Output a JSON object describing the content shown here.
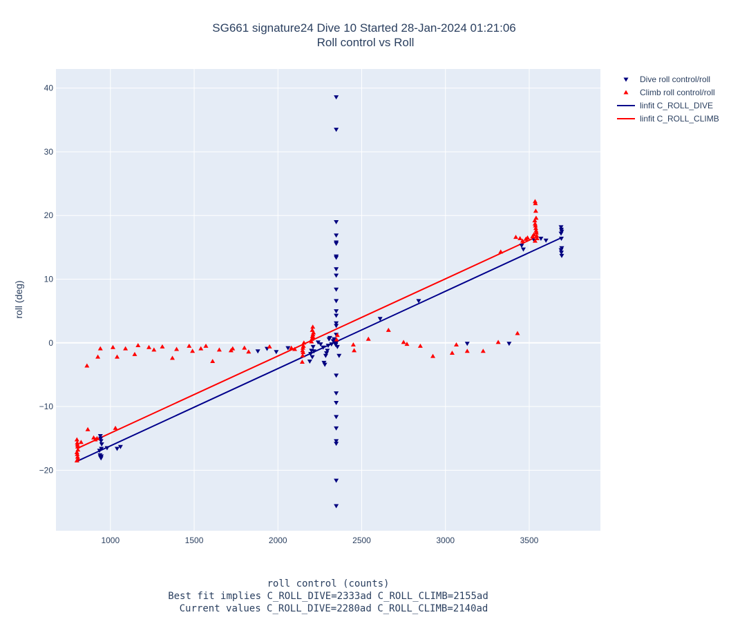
{
  "chart_data": {
    "type": "scatter",
    "title": "SG661 signature24 Dive 10 Started 28-Jan-2024 01:21:06",
    "subtitle": "Roll control vs Roll",
    "xlabel": "roll control (counts)",
    "ylabel": "roll (deg)",
    "xlabel_notes": [
      "Best fit implies C_ROLL_DIVE=2333ad C_ROLL_CLIMB=2155ad",
      "Current values C_ROLL_DIVE=2280ad C_ROLL_CLIMB=2140ad"
    ],
    "xlim": [
      675,
      3925
    ],
    "ylim": [
      -29.5,
      43
    ],
    "x_ticks": [
      1000,
      1500,
      2000,
      2500,
      3000,
      3500
    ],
    "y_ticks": [
      -20,
      -10,
      0,
      10,
      20,
      30,
      40
    ],
    "grid": true,
    "legend_position": "top-right",
    "colors": {
      "plot_bg": "#e5ecf6",
      "grid": "#ffffff",
      "text": "#2a3f5f",
      "dive": "#00007f",
      "climb": "#ff0000",
      "dive_fit": "#00008b",
      "climb_fit": "#ff0000"
    },
    "series": [
      {
        "name": "Dive roll control/roll",
        "kind": "markers",
        "marker": "triangle-down",
        "points": [
          [
            940,
            -14.6
          ],
          [
            942,
            -15.0
          ],
          [
            944,
            -15.4
          ],
          [
            946,
            -16.6
          ],
          [
            938,
            -17.6
          ],
          [
            940,
            -17.9
          ],
          [
            944,
            -18.1
          ],
          [
            946,
            -17.8
          ],
          [
            948,
            -15.9
          ],
          [
            935,
            -16.9
          ],
          [
            980,
            -16.5
          ],
          [
            1040,
            -16.6
          ],
          [
            1060,
            -16.3
          ],
          [
            1880,
            -1.3
          ],
          [
            1935,
            -0.9
          ],
          [
            1990,
            -1.4
          ],
          [
            2060,
            -0.8
          ],
          [
            2190,
            -2.9
          ],
          [
            2195,
            -1.7
          ],
          [
            2200,
            -1.2
          ],
          [
            2205,
            -2.2
          ],
          [
            2210,
            -0.6
          ],
          [
            2215,
            -1.3
          ],
          [
            2240,
            0.1
          ],
          [
            2255,
            -0.2
          ],
          [
            2270,
            -0.7
          ],
          [
            2275,
            -3.1
          ],
          [
            2280,
            -3.4
          ],
          [
            2285,
            -2.0
          ],
          [
            2290,
            -1.6
          ],
          [
            2295,
            -1.2
          ],
          [
            2300,
            -0.4
          ],
          [
            2305,
            0.6
          ],
          [
            2310,
            0.8
          ],
          [
            2320,
            -0.2
          ],
          [
            2330,
            0.3
          ],
          [
            2335,
            0.6
          ],
          [
            2340,
            0.2
          ],
          [
            2345,
            -0.3
          ],
          [
            2350,
            0.1
          ],
          [
            2355,
            -0.6
          ],
          [
            2348,
            38.6
          ],
          [
            2348,
            33.5
          ],
          [
            2348,
            19.0
          ],
          [
            2348,
            16.9
          ],
          [
            2348,
            15.8
          ],
          [
            2348,
            15.6
          ],
          [
            2348,
            13.6
          ],
          [
            2348,
            13.4
          ],
          [
            2348,
            11.6
          ],
          [
            2348,
            10.6
          ],
          [
            2348,
            8.4
          ],
          [
            2348,
            6.6
          ],
          [
            2348,
            5.0
          ],
          [
            2348,
            4.3
          ],
          [
            2348,
            3.1
          ],
          [
            2348,
            2.7
          ],
          [
            2348,
            1.3
          ],
          [
            2348,
            -5.1
          ],
          [
            2348,
            -7.9
          ],
          [
            2348,
            -9.4
          ],
          [
            2348,
            -11.6
          ],
          [
            2348,
            -13.4
          ],
          [
            2348,
            -15.4
          ],
          [
            2348,
            -15.8
          ],
          [
            2348,
            -21.6
          ],
          [
            2348,
            -25.6
          ],
          [
            2365,
            -2.0
          ],
          [
            2610,
            3.8
          ],
          [
            2840,
            6.6
          ],
          [
            3130,
            -0.1
          ],
          [
            3380,
            -0.1
          ],
          [
            3455,
            15.3
          ],
          [
            3465,
            14.7
          ],
          [
            3530,
            16.1
          ],
          [
            3570,
            16.4
          ],
          [
            3600,
            16.1
          ],
          [
            3690,
            18.2
          ],
          [
            3692,
            17.8
          ],
          [
            3694,
            17.5
          ],
          [
            3690,
            17.2
          ],
          [
            3692,
            16.4
          ],
          [
            3694,
            14.9
          ],
          [
            3690,
            14.6
          ],
          [
            3692,
            14.2
          ],
          [
            3694,
            13.7
          ]
        ]
      },
      {
        "name": "Climb roll control/roll",
        "kind": "markers",
        "marker": "triangle-up",
        "points": [
          [
            800,
            -15.2
          ],
          [
            802,
            -15.7
          ],
          [
            804,
            -16.3
          ],
          [
            806,
            -16.8
          ],
          [
            800,
            -17.2
          ],
          [
            802,
            -17.5
          ],
          [
            804,
            -17.9
          ],
          [
            806,
            -18.2
          ],
          [
            800,
            -18.5
          ],
          [
            803,
            -16.0
          ],
          [
            825,
            -15.6
          ],
          [
            860,
            -3.6
          ],
          [
            865,
            -13.6
          ],
          [
            900,
            -14.9
          ],
          [
            910,
            -15.2
          ],
          [
            920,
            -15.0
          ],
          [
            925,
            -2.2
          ],
          [
            940,
            -0.9
          ],
          [
            1015,
            -0.7
          ],
          [
            1030,
            -13.4
          ],
          [
            1040,
            -2.2
          ],
          [
            1090,
            -0.9
          ],
          [
            1145,
            -1.8
          ],
          [
            1165,
            -0.4
          ],
          [
            1230,
            -0.7
          ],
          [
            1260,
            -1.1
          ],
          [
            1310,
            -0.6
          ],
          [
            1370,
            -2.4
          ],
          [
            1395,
            -1.0
          ],
          [
            1470,
            -0.5
          ],
          [
            1490,
            -1.3
          ],
          [
            1540,
            -0.9
          ],
          [
            1570,
            -0.5
          ],
          [
            1610,
            -2.9
          ],
          [
            1650,
            -1.1
          ],
          [
            1720,
            -1.2
          ],
          [
            1730,
            -0.9
          ],
          [
            1800,
            -0.8
          ],
          [
            1825,
            -1.4
          ],
          [
            1950,
            -0.6
          ],
          [
            2080,
            -0.8
          ],
          [
            2100,
            -1.0
          ],
          [
            2145,
            -3.0
          ],
          [
            2148,
            -2.0
          ],
          [
            2150,
            -1.5
          ],
          [
            2152,
            -0.5
          ],
          [
            2155,
            0.0
          ],
          [
            2147,
            -1.2
          ],
          [
            2149,
            -0.8
          ],
          [
            2200,
            0.2
          ],
          [
            2203,
            0.6
          ],
          [
            2206,
            1.0
          ],
          [
            2209,
            1.3
          ],
          [
            2212,
            1.6
          ],
          [
            2205,
            2.0
          ],
          [
            2208,
            2.5
          ],
          [
            2210,
            0.9
          ],
          [
            2350,
            0.5
          ],
          [
            2355,
            1.2
          ],
          [
            2450,
            -0.3
          ],
          [
            2455,
            -1.2
          ],
          [
            2540,
            0.6
          ],
          [
            2660,
            2.0
          ],
          [
            2750,
            0.1
          ],
          [
            2770,
            -0.2
          ],
          [
            2850,
            -0.5
          ],
          [
            2925,
            -2.1
          ],
          [
            3040,
            -1.6
          ],
          [
            3065,
            -0.3
          ],
          [
            3130,
            -1.3
          ],
          [
            3225,
            -1.3
          ],
          [
            3315,
            0.1
          ],
          [
            3330,
            14.3
          ],
          [
            3420,
            16.6
          ],
          [
            3430,
            1.5
          ],
          [
            3445,
            16.4
          ],
          [
            3460,
            16.0
          ],
          [
            3480,
            16.3
          ],
          [
            3490,
            16.5
          ],
          [
            3520,
            16.7
          ],
          [
            3528,
            17.0
          ],
          [
            3535,
            22.2
          ],
          [
            3537,
            21.9
          ],
          [
            3539,
            20.7
          ],
          [
            3541,
            19.6
          ],
          [
            3533,
            19.2
          ],
          [
            3535,
            18.7
          ],
          [
            3537,
            18.4
          ],
          [
            3539,
            18.0
          ],
          [
            3541,
            17.6
          ],
          [
            3543,
            17.3
          ],
          [
            3545,
            16.8
          ],
          [
            3547,
            16.4
          ],
          [
            3535,
            16.0
          ]
        ]
      },
      {
        "name": "linfit C_ROLL_DIVE",
        "kind": "line",
        "x": [
          800,
          3700
        ],
        "y": [
          -18.6,
          16.6
        ]
      },
      {
        "name": "linfit C_ROLL_CLIMB",
        "kind": "line",
        "x": [
          800,
          3540
        ],
        "y": [
          -16.6,
          16.6
        ]
      }
    ]
  }
}
